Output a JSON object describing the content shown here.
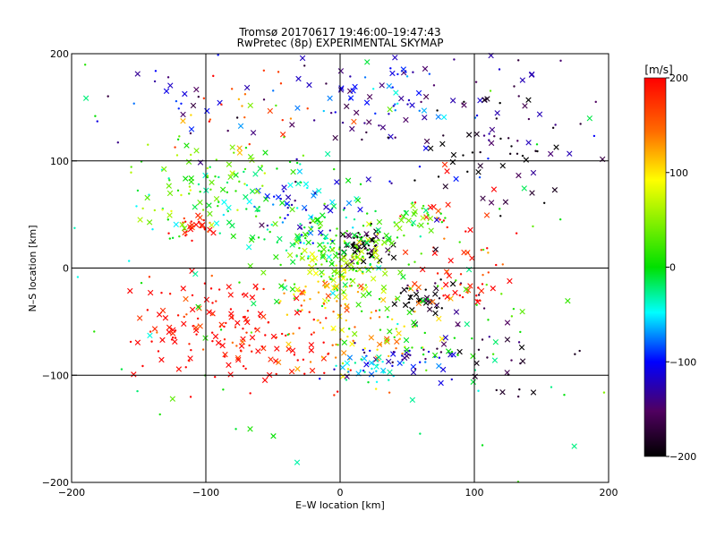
{
  "chart_data": {
    "type": "scatter",
    "title_line1": "Tromsø 20170617 19:46:00–19:47:43",
    "title_line2": "RwPretec (8p) EXPERIMENTAL SKYMAP",
    "xlabel": "E–W location [km]",
    "ylabel": "N–S location [km]",
    "xlim": [
      -200,
      200
    ],
    "ylim": [
      -200,
      200
    ],
    "xticks": [
      -200,
      -100,
      0,
      100,
      200
    ],
    "yticks": [
      -200,
      -100,
      0,
      100,
      200
    ],
    "grid": true,
    "colorbar": {
      "label": "[m/s]",
      "range": [
        -200,
        200
      ],
      "ticks": [
        200,
        100,
        0,
        -100,
        -200
      ]
    },
    "clusters": [
      {
        "cx": 18,
        "cy": 22,
        "rx": 10,
        "ry": 8,
        "v": -200,
        "n": 60
      },
      {
        "cx": 60,
        "cy": -28,
        "rx": 12,
        "ry": 9,
        "v": -190,
        "n": 35
      },
      {
        "cx": 5,
        "cy": 5,
        "rx": 18,
        "ry": 14,
        "v": 60,
        "n": 90
      },
      {
        "cx": -5,
        "cy": 20,
        "rx": 25,
        "ry": 20,
        "v": 0,
        "n": 110
      },
      {
        "cx": -60,
        "cy": 60,
        "rx": 40,
        "ry": 25,
        "v": -20,
        "n": 90
      },
      {
        "cx": -30,
        "cy": 50,
        "rx": 20,
        "ry": 15,
        "v": -110,
        "n": 40
      },
      {
        "cx": -110,
        "cy": 40,
        "rx": 8,
        "ry": 6,
        "v": 200,
        "n": 28
      },
      {
        "cx": -100,
        "cy": 80,
        "rx": 25,
        "ry": 20,
        "v": 50,
        "n": 60
      },
      {
        "cx": -70,
        "cy": -60,
        "rx": 40,
        "ry": 25,
        "v": 200,
        "n": 140
      },
      {
        "cx": -120,
        "cy": -40,
        "rx": 20,
        "ry": 25,
        "v": 195,
        "n": 35
      },
      {
        "cx": 25,
        "cy": -60,
        "rx": 30,
        "ry": 25,
        "v": 120,
        "n": 80
      },
      {
        "cx": 45,
        "cy": -85,
        "rx": 25,
        "ry": 10,
        "v": -110,
        "n": 45
      },
      {
        "cx": 20,
        "cy": -95,
        "rx": 12,
        "ry": 8,
        "v": -40,
        "n": 25
      },
      {
        "cx": -20,
        "cy": -30,
        "rx": 15,
        "ry": 10,
        "v": 120,
        "n": 25
      },
      {
        "cx": 80,
        "cy": 20,
        "rx": 25,
        "ry": 30,
        "v": 190,
        "n": 40
      },
      {
        "cx": 100,
        "cy": -20,
        "rx": 10,
        "ry": 12,
        "v": 200,
        "n": 20
      },
      {
        "cx": 70,
        "cy": 140,
        "rx": 60,
        "ry": 40,
        "v": -140,
        "n": 100
      },
      {
        "cx": 110,
        "cy": 110,
        "rx": 30,
        "ry": 40,
        "v": -195,
        "n": 45
      },
      {
        "cx": 30,
        "cy": 160,
        "rx": 30,
        "ry": 25,
        "v": -80,
        "n": 40
      },
      {
        "cx": -120,
        "cy": 150,
        "rx": 30,
        "ry": 25,
        "v": -120,
        "n": 30
      },
      {
        "cx": -70,
        "cy": 150,
        "rx": 30,
        "ry": 20,
        "v": 150,
        "n": 25
      },
      {
        "cx": 55,
        "cy": 45,
        "rx": 10,
        "ry": 8,
        "v": 30,
        "n": 25
      },
      {
        "cx": 120,
        "cy": -70,
        "rx": 25,
        "ry": 25,
        "v": -170,
        "n": 30
      },
      {
        "cx": 60,
        "cy": -60,
        "rx": 30,
        "ry": 20,
        "v": 10,
        "n": 40
      },
      {
        "cx": 0,
        "cy": 0,
        "rx": 150,
        "ry": 150,
        "v": 0,
        "n": 150
      }
    ]
  }
}
